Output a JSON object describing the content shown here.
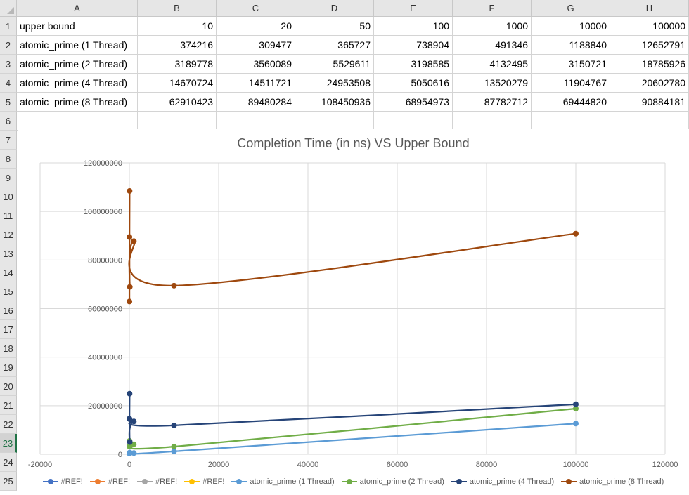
{
  "sheet": {
    "columns": [
      "A",
      "B",
      "C",
      "D",
      "E",
      "F",
      "G",
      "H"
    ],
    "rows": [
      "1",
      "2",
      "3",
      "4",
      "5",
      "6",
      "7",
      "8",
      "9",
      "10",
      "11",
      "12",
      "13",
      "14",
      "15",
      "16",
      "17",
      "18",
      "19",
      "20",
      "21",
      "22",
      "23",
      "24",
      "25"
    ],
    "selected_row": "23",
    "cells": [
      [
        "upper bound",
        "10",
        "20",
        "50",
        "100",
        "1000",
        "10000",
        "100000"
      ],
      [
        "atomic_prime (1 Thread)",
        "374216",
        "309477",
        "365727",
        "738904",
        "491346",
        "1188840",
        "12652791"
      ],
      [
        "atomic_prime (2 Thread)",
        "3189778",
        "3560089",
        "5529611",
        "3198585",
        "4132495",
        "3150721",
        "18785926"
      ],
      [
        "atomic_prime (4 Thread)",
        "14670724",
        "14511721",
        "24953508",
        "5050616",
        "13520279",
        "11904767",
        "20602780"
      ],
      [
        "atomic_prime (8 Thread)",
        "62910423",
        "89480284",
        "108450936",
        "68954973",
        "87782712",
        "69444820",
        "90884181"
      ]
    ]
  },
  "chart_data": {
    "type": "scatter",
    "title": "Completion Time (in ns) VS Upper Bound",
    "xlim": [
      -20000,
      120000
    ],
    "ylim": [
      0,
      120000000
    ],
    "x_ticks": [
      "-20000",
      "0",
      "20000",
      "40000",
      "60000",
      "80000",
      "100000",
      "120000"
    ],
    "y_ticks": [
      "0",
      "20000000",
      "40000000",
      "60000000",
      "80000000",
      "100000000",
      "120000000"
    ],
    "grid": true,
    "smooth_lines": true,
    "legend_position": "bottom",
    "x": [
      10,
      20,
      50,
      100,
      1000,
      10000,
      100000
    ],
    "series": [
      {
        "name": "#REF!",
        "color": "#4472c4",
        "values": []
      },
      {
        "name": "#REF!",
        "color": "#ed7d31",
        "values": []
      },
      {
        "name": "#REF!",
        "color": "#a5a5a5",
        "values": []
      },
      {
        "name": "#REF!",
        "color": "#ffc000",
        "values": []
      },
      {
        "name": "atomic_prime (1 Thread)",
        "color": "#5b9bd5",
        "values": [
          374216,
          309477,
          365727,
          738904,
          491346,
          1188840,
          12652791
        ]
      },
      {
        "name": "atomic_prime (2 Thread)",
        "color": "#70ad47",
        "values": [
          3189778,
          3560089,
          5529611,
          3198585,
          4132495,
          3150721,
          18785926
        ]
      },
      {
        "name": "atomic_prime (4 Thread)",
        "color": "#264478",
        "values": [
          14670724,
          14511721,
          24953508,
          5050616,
          13520279,
          11904767,
          20602780
        ]
      },
      {
        "name": "atomic_prime (8 Thread)",
        "color": "#9e480e",
        "values": [
          62910423,
          89480284,
          108450936,
          68954973,
          87782712,
          69444820,
          90884181
        ]
      }
    ]
  }
}
